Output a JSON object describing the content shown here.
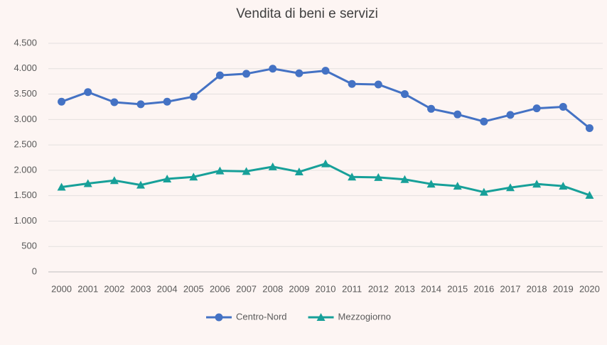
{
  "chart_data": {
    "type": "line",
    "title": "Vendita di beni e servizi",
    "categories": [
      "2000",
      "2001",
      "2002",
      "2003",
      "2004",
      "2005",
      "2006",
      "2007",
      "2008",
      "2009",
      "2010",
      "2011",
      "2012",
      "2013",
      "2014",
      "2015",
      "2016",
      "2017",
      "2018",
      "2019",
      "2020"
    ],
    "series": [
      {
        "name": "Centro-Nord",
        "color": "#4472c4",
        "marker": "circle",
        "values": [
          3350,
          3540,
          3340,
          3300,
          3350,
          3450,
          3870,
          3900,
          4000,
          3910,
          3960,
          3700,
          3690,
          3500,
          3210,
          3100,
          2960,
          3090,
          3220,
          3250,
          2830
        ]
      },
      {
        "name": "Mezzogiorno",
        "color": "#17a099",
        "marker": "triangle",
        "values": [
          1670,
          1740,
          1800,
          1710,
          1830,
          1870,
          1990,
          1980,
          2070,
          1970,
          2130,
          1870,
          1860,
          1820,
          1730,
          1690,
          1570,
          1660,
          1730,
          1690,
          1510
        ]
      }
    ],
    "ylim": [
      0,
      4500
    ],
    "yticks": [
      0,
      500,
      {
        "value": 1000,
        "label": "1.000"
      },
      {
        "value": 1500,
        "label": "1.500"
      },
      {
        "value": 2000,
        "label": "2.000"
      },
      {
        "value": 2500,
        "label": "2.500"
      },
      {
        "value": 3000,
        "label": "3.000"
      },
      {
        "value": 3500,
        "label": "3.500"
      },
      {
        "value": 4000,
        "label": "4.000"
      },
      {
        "value": 4500,
        "label": "4.500"
      }
    ],
    "grid": true,
    "legend": "bottom"
  }
}
